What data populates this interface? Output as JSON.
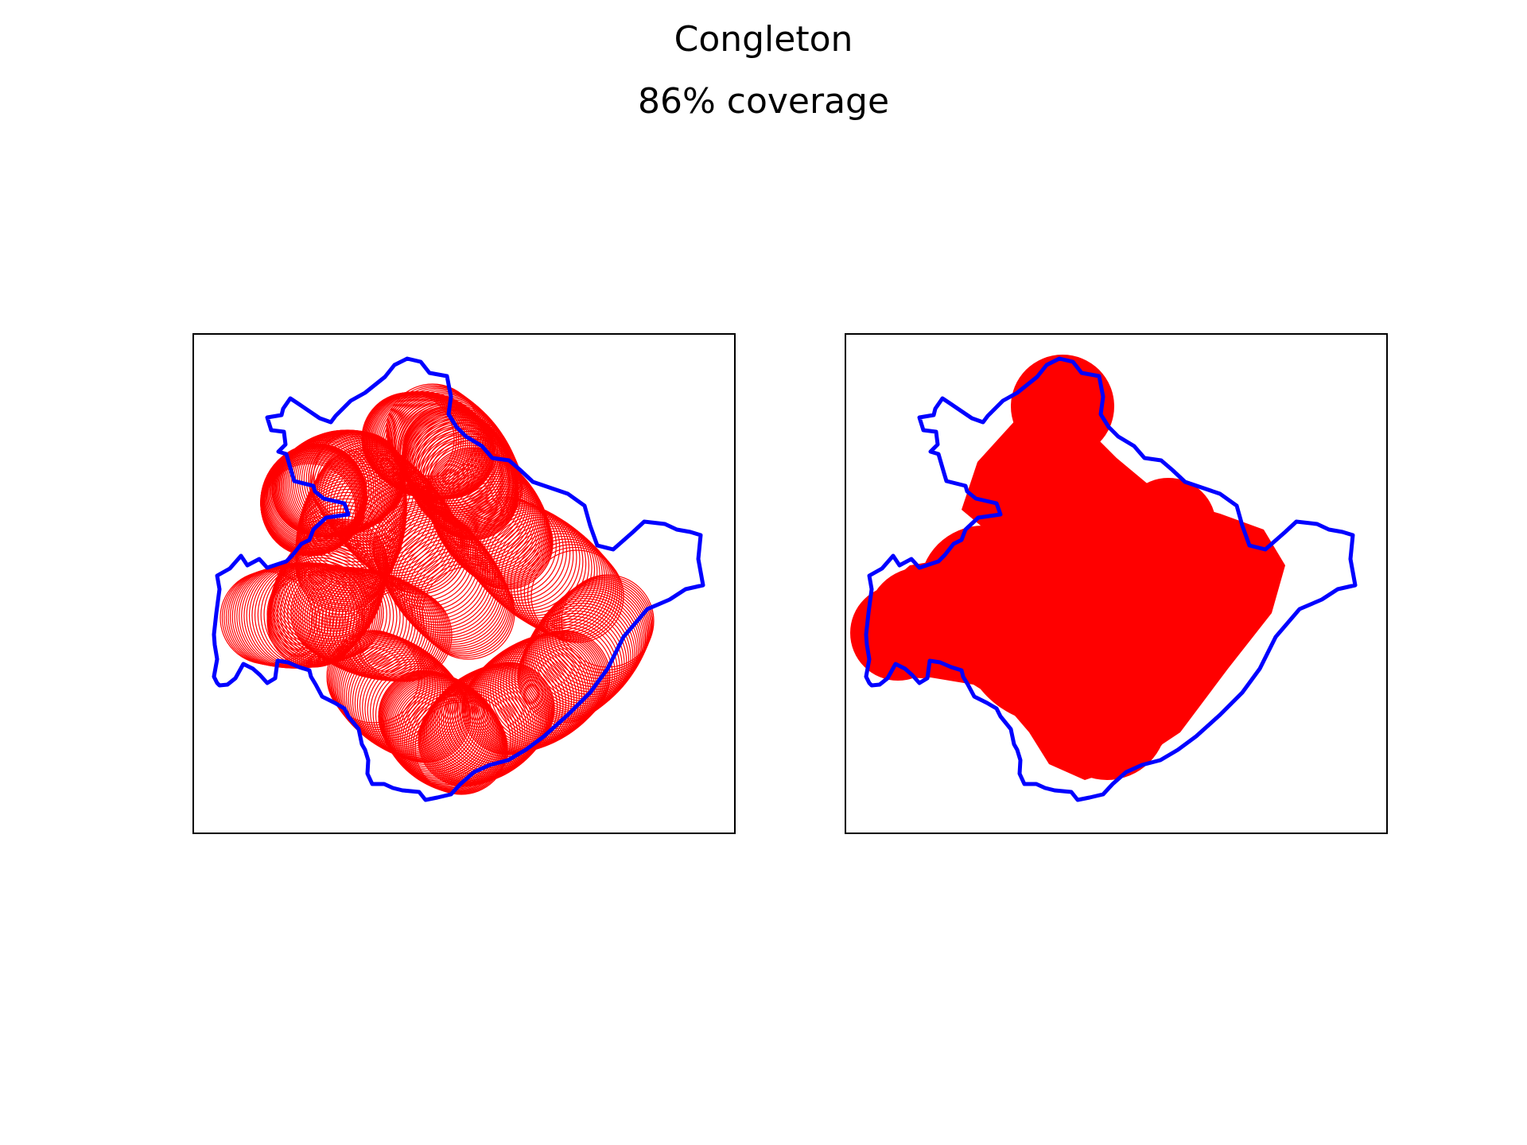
{
  "figure": {
    "title": "Congleton",
    "subtitle": "86% coverage"
  },
  "colors": {
    "boundary": "#0000ff",
    "coverage": "#ff0000",
    "frame": "#000000"
  },
  "panels": [
    {
      "name": "circle-outlines",
      "style": "outline"
    },
    {
      "name": "circle-union",
      "style": "filled"
    }
  ]
}
